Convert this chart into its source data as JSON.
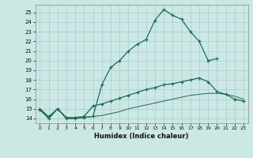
{
  "xlabel": "Humidex (Indice chaleur)",
  "bg_color": "#cce8e4",
  "line_color": "#1a6b5a",
  "grid_color": "#aacccc",
  "xlim": [
    -0.5,
    23.5
  ],
  "ylim": [
    13.5,
    25.8
  ],
  "yticks": [
    14,
    15,
    16,
    17,
    18,
    19,
    20,
    21,
    22,
    23,
    24,
    25
  ],
  "xticks": [
    0,
    1,
    2,
    3,
    4,
    5,
    6,
    7,
    8,
    9,
    10,
    11,
    12,
    13,
    14,
    15,
    16,
    17,
    18,
    19,
    20,
    21,
    22,
    23
  ],
  "curve1_x": [
    0,
    1,
    2,
    3,
    4,
    5,
    6,
    7,
    8,
    9,
    10,
    11,
    12,
    13,
    14,
    15,
    16,
    17,
    18,
    19,
    20
  ],
  "curve1_y": [
    14.9,
    14.0,
    15.0,
    14.0,
    14.0,
    14.1,
    14.2,
    17.5,
    19.3,
    20.0,
    21.0,
    21.7,
    22.2,
    24.2,
    25.3,
    24.7,
    24.3,
    23.0,
    22.0,
    20.0,
    20.2
  ],
  "curve2_x": [
    0,
    1,
    2,
    3,
    4,
    5,
    6,
    7,
    8,
    9,
    10,
    11,
    12,
    13,
    14,
    15,
    16,
    17,
    18,
    19,
    20,
    21,
    22,
    23
  ],
  "curve2_y": [
    15.0,
    14.2,
    15.0,
    14.1,
    14.1,
    14.2,
    15.3,
    15.5,
    15.8,
    16.1,
    16.4,
    16.7,
    17.0,
    17.2,
    17.5,
    17.6,
    17.8,
    18.0,
    18.2,
    17.8,
    16.8,
    16.5,
    16.0,
    15.8
  ],
  "curve3_x": [
    0,
    1,
    2,
    3,
    4,
    5,
    6,
    7,
    8,
    9,
    10,
    11,
    12,
    13,
    14,
    15,
    16,
    17,
    18,
    19,
    20,
    21,
    22,
    23
  ],
  "curve3_y": [
    14.9,
    14.0,
    15.0,
    14.0,
    14.0,
    14.1,
    14.2,
    14.3,
    14.5,
    14.7,
    15.0,
    15.2,
    15.4,
    15.6,
    15.8,
    16.0,
    16.2,
    16.4,
    16.5,
    16.6,
    16.6,
    16.5,
    16.3,
    16.0
  ]
}
